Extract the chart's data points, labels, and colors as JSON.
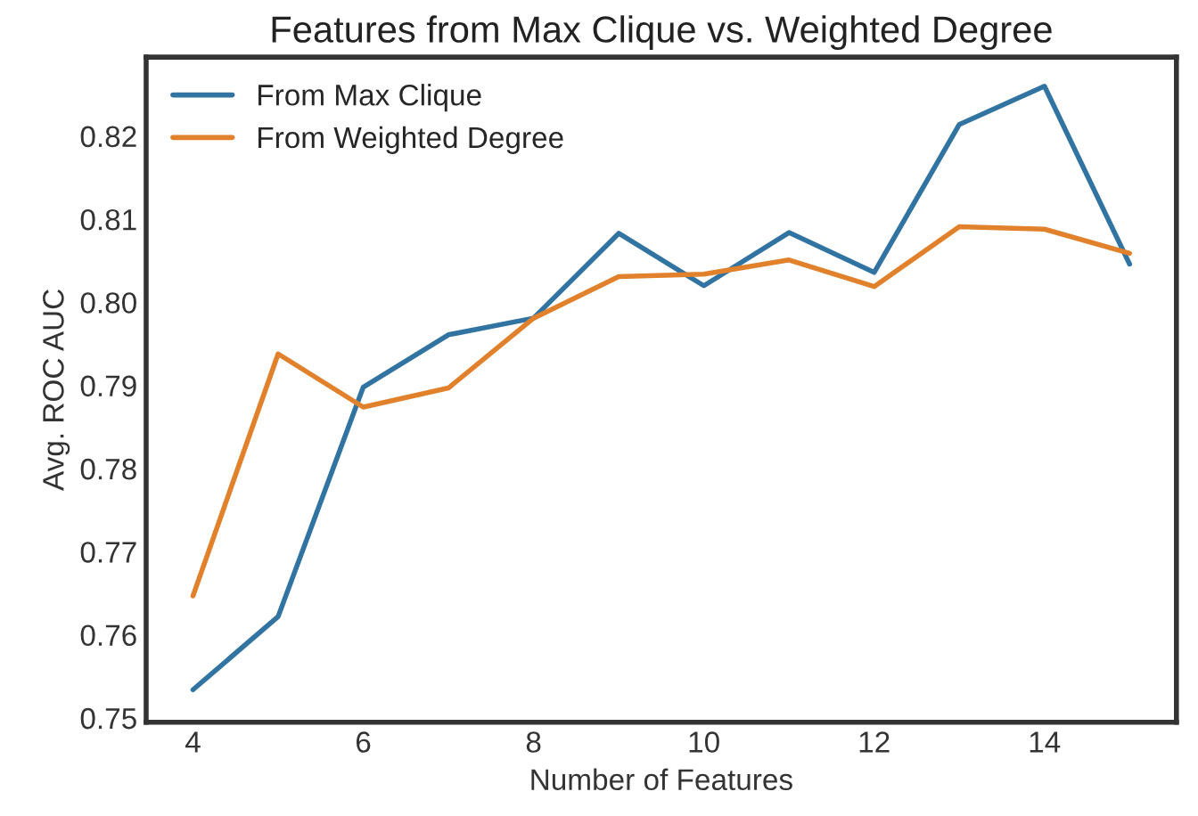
{
  "chart_data": {
    "type": "line",
    "title": "Features from Max Clique vs. Weighted Degree",
    "xlabel": "Number of Features",
    "ylabel": "Avg. ROC AUC",
    "x": [
      4,
      5,
      6,
      7,
      8,
      9,
      10,
      11,
      12,
      13,
      14,
      15
    ],
    "series": [
      {
        "name": "From Max Clique",
        "color": "#3274a1",
        "values": [
          0.7534,
          0.7622,
          0.7898,
          0.7961,
          0.7981,
          0.8083,
          0.802,
          0.8084,
          0.8036,
          0.8214,
          0.826,
          0.8046
        ]
      },
      {
        "name": "From Weighted Degree",
        "color": "#e1812c",
        "values": [
          0.7647,
          0.7938,
          0.7874,
          0.7897,
          0.7981,
          0.8031,
          0.8034,
          0.8051,
          0.8019,
          0.8091,
          0.8088,
          0.8059
        ]
      }
    ],
    "xlim": [
      3.45,
      15.55
    ],
    "ylim": [
      0.7495,
      0.8295
    ],
    "xticks": [
      4,
      6,
      8,
      10,
      12,
      14
    ],
    "yticks": [
      {
        "value": 0.75,
        "label": "0.75"
      },
      {
        "value": 0.76,
        "label": "0.76"
      },
      {
        "value": 0.77,
        "label": "0.77"
      },
      {
        "value": 0.78,
        "label": "0.78"
      },
      {
        "value": 0.79,
        "label": "0.79"
      },
      {
        "value": 0.8,
        "label": "0.80"
      },
      {
        "value": 0.81,
        "label": "0.81"
      },
      {
        "value": 0.82,
        "label": "0.82"
      }
    ],
    "grid": false,
    "legend": "top left",
    "marker": "none",
    "line_style": "solid"
  }
}
